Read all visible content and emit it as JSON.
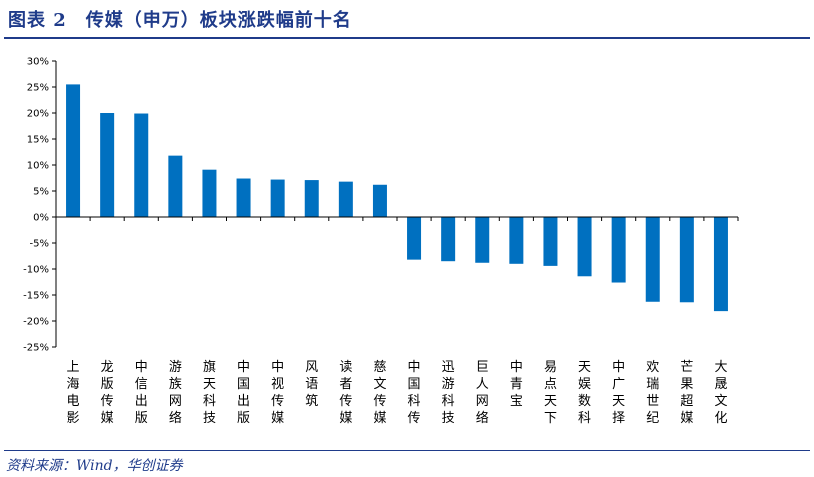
{
  "header": {
    "title": "图表 2　传媒（申万）板块涨跌幅前十名"
  },
  "footer": {
    "source": "资料来源：Wind，华创证券"
  },
  "colors": {
    "bar": "#0070C0",
    "accent": "#1f3b8a",
    "axis": "#000000"
  },
  "chart_data": {
    "type": "bar",
    "categories": [
      "上海电影",
      "龙版传媒",
      "中信出版",
      "游族网络",
      "旗天科技",
      "中国出版",
      "中视传媒",
      "风语筑",
      "读者传媒",
      "慈文传媒",
      "中国科传",
      "迅游科技",
      "巨人网络",
      "中青宝",
      "易点天下",
      "天娱数科",
      "中广天择",
      "欢瑞世纪",
      "芒果超媒",
      "大晟文化"
    ],
    "values": [
      25.5,
      20.0,
      19.9,
      11.8,
      9.1,
      7.4,
      7.2,
      7.1,
      6.8,
      6.2,
      -8.2,
      -8.5,
      -8.8,
      -9.0,
      -9.4,
      -11.4,
      -12.6,
      -16.3,
      -16.4,
      -18.1
    ],
    "ylim": [
      -25,
      30
    ],
    "yticks": [
      "30%",
      "25%",
      "20%",
      "15%",
      "10%",
      "5%",
      "0%",
      "-5%",
      "-10%",
      "-15%",
      "-20%",
      "-25%"
    ],
    "ytick_values": [
      30,
      25,
      20,
      15,
      10,
      5,
      0,
      -5,
      -10,
      -15,
      -20,
      -25
    ],
    "title": "",
    "xlabel": "",
    "ylabel": "",
    "legend": "none",
    "grid": false
  }
}
